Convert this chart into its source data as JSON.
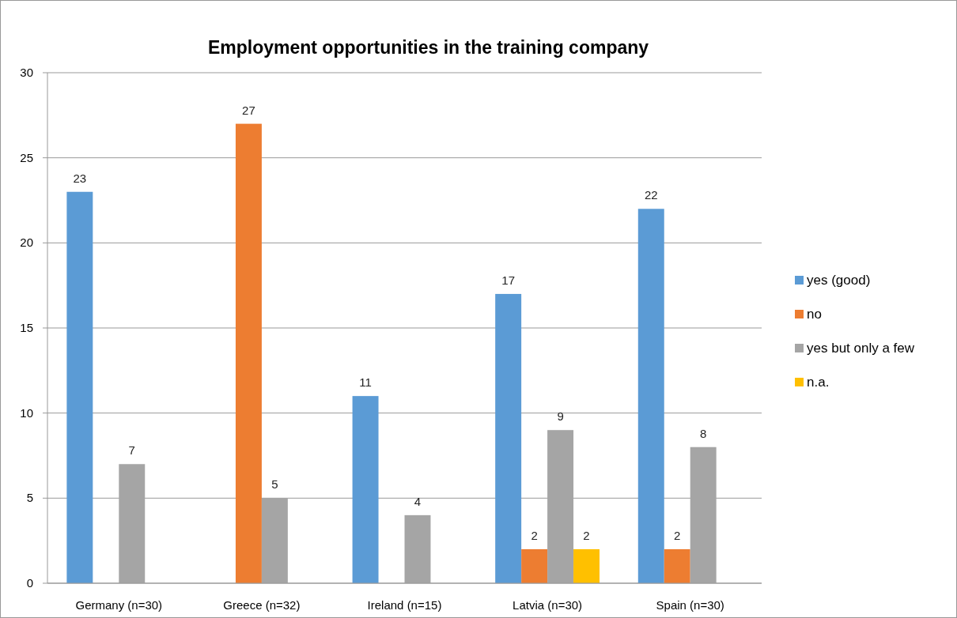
{
  "chart_data": {
    "type": "bar",
    "title": "Employment opportunities in the training company",
    "categories": [
      "Germany (n=30)",
      "Greece (n=32)",
      "Ireland (n=15)",
      "Latvia (n=30)",
      "Spain (n=30)"
    ],
    "series": [
      {
        "name": "yes (good)",
        "color": "#5b9bd5",
        "values": [
          23,
          null,
          11,
          17,
          22
        ]
      },
      {
        "name": "no",
        "color": "#ed7d31",
        "values": [
          null,
          27,
          null,
          2,
          2
        ]
      },
      {
        "name": "yes but only a few",
        "color": "#a5a5a5",
        "values": [
          7,
          5,
          4,
          9,
          8
        ]
      },
      {
        "name": "n.a.",
        "color": "#ffc000",
        "values": [
          null,
          null,
          null,
          2,
          null
        ]
      }
    ],
    "ylim": [
      0,
      30
    ],
    "yticks": [
      0,
      5,
      10,
      15,
      20,
      25,
      30
    ],
    "grid": "y",
    "legend": "right",
    "data_labels": true
  }
}
